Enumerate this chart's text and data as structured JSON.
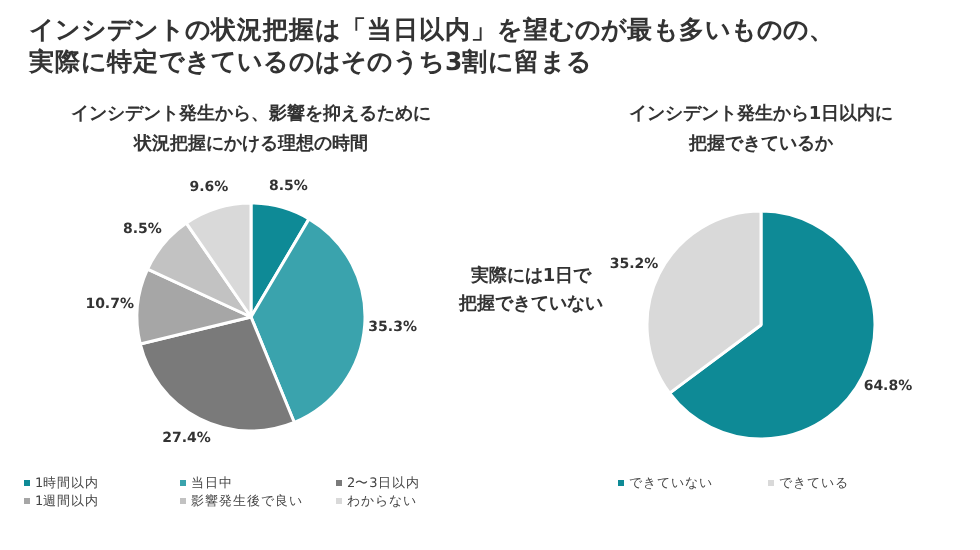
{
  "chart_data": [
    {
      "type": "other",
      "title": "インシデントの状況把握は「当日以内」を望むのが最も多いものの、実際に特定できているのはそのうち3割に留まる"
    },
    {
      "type": "pie",
      "title": "インシデント発生から、影響を抑えるために状況把握にかける理想の時間",
      "categories": [
        "1時間以内",
        "当日中",
        "2〜3日以内",
        "1週間以内",
        "影響発生後で良い",
        "わからない"
      ],
      "values": [
        8.5,
        35.3,
        27.4,
        10.7,
        8.5,
        9.6
      ],
      "colors": [
        "#0e8a96",
        "#3aa3ad",
        "#7a7a7a",
        "#a6a6a6",
        "#c2c2c2",
        "#d9d9d9"
      ],
      "value_labels": [
        "8.5%",
        "35.3%",
        "27.4%",
        "10.7%",
        "8.5%",
        "9.6%"
      ],
      "legend": "bottom"
    },
    {
      "type": "pie",
      "title": "インシデント発生から1日以内に把握できているか",
      "categories": [
        "できていない",
        "できている"
      ],
      "values": [
        64.8,
        35.2
      ],
      "colors": [
        "#0e8a96",
        "#d9d9d9"
      ],
      "value_labels": [
        "64.8%",
        "35.2%"
      ],
      "legend": "bottom",
      "annotations": [
        "実際には1日で把握できていない"
      ]
    }
  ]
}
